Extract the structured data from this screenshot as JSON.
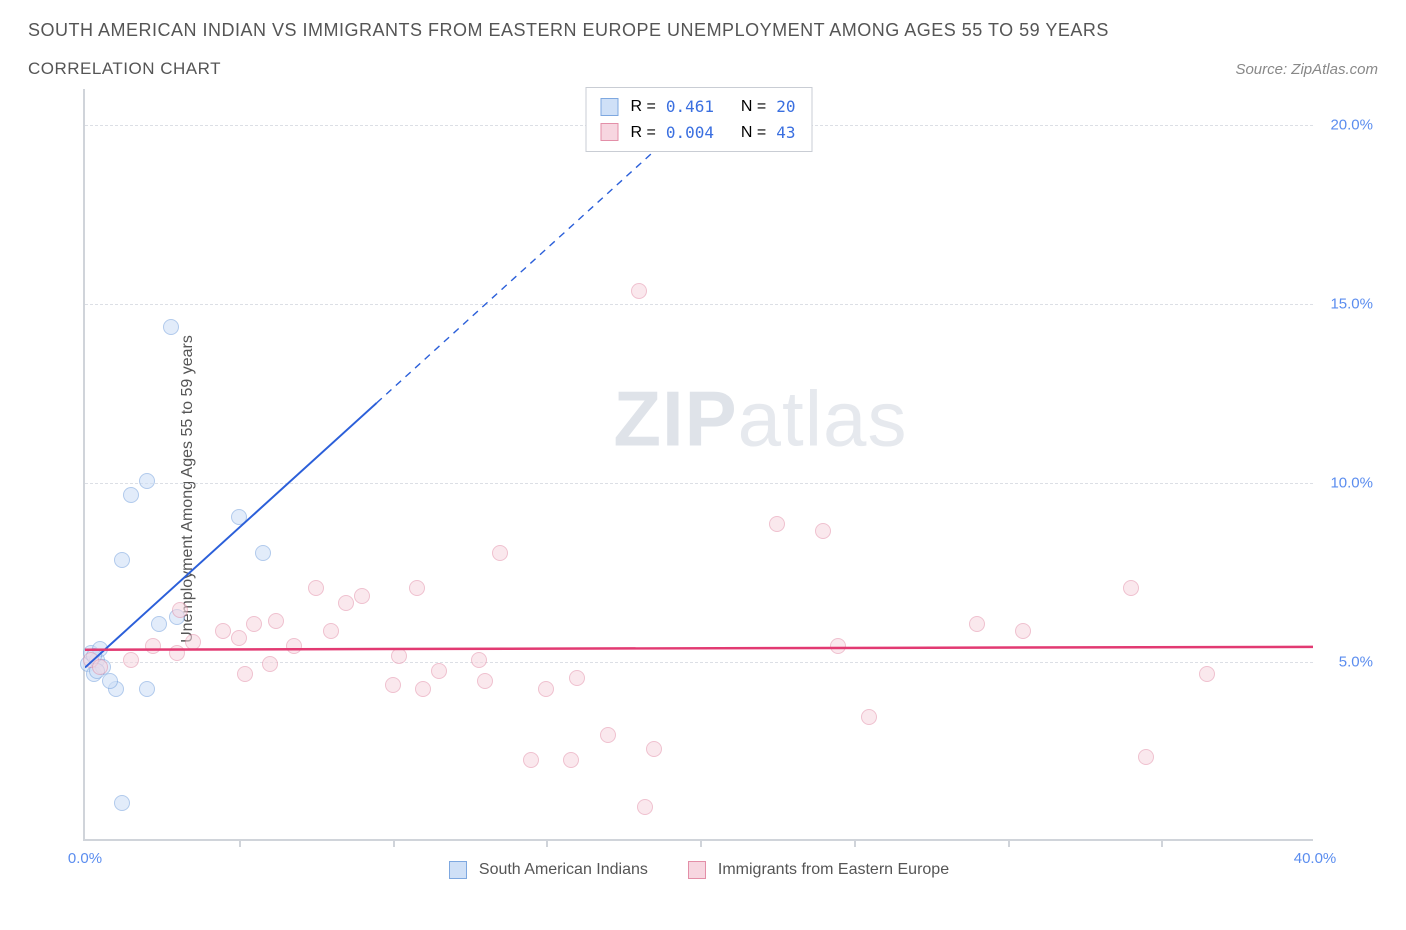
{
  "title": "SOUTH AMERICAN INDIAN VS IMMIGRANTS FROM EASTERN EUROPE UNEMPLOYMENT AMONG AGES 55 TO 59 YEARS",
  "subtitle": "CORRELATION CHART",
  "source": "Source: ZipAtlas.com",
  "ylabel": "Unemployment Among Ages 55 to 59 years",
  "watermark_parts": {
    "zip": "ZIP",
    "atlas": "atlas"
  },
  "chart": {
    "type": "scatter",
    "background_color": "#ffffff",
    "grid_color": "#dcdfe5",
    "axis_color": "#d0d4da",
    "tick_label_color": "#5b8def",
    "xlim": [
      0,
      40
    ],
    "ylim": [
      0,
      21
    ],
    "y_ticks": [
      {
        "v": 5,
        "label": "5.0%"
      },
      {
        "v": 10,
        "label": "10.0%"
      },
      {
        "v": 15,
        "label": "15.0%"
      },
      {
        "v": 20,
        "label": "20.0%"
      }
    ],
    "x_ticks": [
      {
        "v": 0,
        "label": "0.0%"
      },
      {
        "v": 40,
        "label": "40.0%"
      }
    ],
    "x_tick_marks": [
      5,
      10,
      15,
      20,
      25,
      30,
      35
    ],
    "marker_radius": 8,
    "marker_stroke_width": 1.5,
    "series": [
      {
        "key": "sai",
        "label": "South American Indians",
        "fill": "#cfe0f7",
        "stroke": "#7ea8e0",
        "fill_opacity": 0.6,
        "R": "0.461",
        "N": "20",
        "trend": {
          "color": "#2b5fd9",
          "width": 2,
          "solid_end_x": 9.5,
          "dash_end_x": 20,
          "y_at_x0": 4.8,
          "slope": 0.78
        },
        "points": [
          [
            0.1,
            4.9
          ],
          [
            0.2,
            5.2
          ],
          [
            0.3,
            4.6
          ],
          [
            0.4,
            5.0
          ],
          [
            0.6,
            4.8
          ],
          [
            0.5,
            5.3
          ],
          [
            0.3,
            5.1
          ],
          [
            1.0,
            4.2
          ],
          [
            2.0,
            4.2
          ],
          [
            1.2,
            1.0
          ],
          [
            1.2,
            7.8
          ],
          [
            1.5,
            9.6
          ],
          [
            2.0,
            10.0
          ],
          [
            2.4,
            6.0
          ],
          [
            3.0,
            6.2
          ],
          [
            2.8,
            14.3
          ],
          [
            5.8,
            8.0
          ],
          [
            5.0,
            9.0
          ],
          [
            0.8,
            4.4
          ],
          [
            0.4,
            4.7
          ]
        ]
      },
      {
        "key": "iee",
        "label": "Immigrants from Eastern Europe",
        "fill": "#f7d6e0",
        "stroke": "#e38fa8",
        "fill_opacity": 0.55,
        "R": "0.004",
        "N": "43",
        "trend": {
          "color": "#e23a72",
          "width": 2.5,
          "solid_end_x": 40,
          "dash_end_x": 40,
          "y_at_x0": 5.3,
          "slope": 0.002
        },
        "points": [
          [
            0.2,
            5.0
          ],
          [
            0.5,
            4.8
          ],
          [
            1.5,
            5.0
          ],
          [
            2.2,
            5.4
          ],
          [
            3.0,
            5.2
          ],
          [
            3.1,
            6.4
          ],
          [
            3.5,
            5.5
          ],
          [
            4.5,
            5.8
          ],
          [
            5.0,
            5.6
          ],
          [
            5.5,
            6.0
          ],
          [
            6.2,
            6.1
          ],
          [
            6.0,
            4.9
          ],
          [
            6.8,
            5.4
          ],
          [
            7.5,
            7.0
          ],
          [
            8.0,
            5.8
          ],
          [
            8.5,
            6.6
          ],
          [
            10.0,
            4.3
          ],
          [
            10.2,
            5.1
          ],
          [
            10.8,
            7.0
          ],
          [
            11.0,
            4.2
          ],
          [
            11.5,
            4.7
          ],
          [
            12.8,
            5.0
          ],
          [
            13.0,
            4.4
          ],
          [
            13.5,
            8.0
          ],
          [
            14.5,
            2.2
          ],
          [
            15.0,
            4.2
          ],
          [
            16.0,
            4.5
          ],
          [
            15.8,
            2.2
          ],
          [
            17.0,
            2.9
          ],
          [
            18.5,
            2.5
          ],
          [
            18.0,
            15.3
          ],
          [
            18.2,
            0.9
          ],
          [
            22.5,
            8.8
          ],
          [
            24.0,
            8.6
          ],
          [
            24.5,
            5.4
          ],
          [
            25.5,
            3.4
          ],
          [
            29.0,
            6.0
          ],
          [
            30.5,
            5.8
          ],
          [
            34.0,
            7.0
          ],
          [
            34.5,
            2.3
          ],
          [
            36.5,
            4.6
          ],
          [
            5.2,
            4.6
          ],
          [
            9.0,
            6.8
          ]
        ]
      }
    ]
  },
  "legend_top_labels": {
    "R": "R =",
    "N": "N ="
  }
}
